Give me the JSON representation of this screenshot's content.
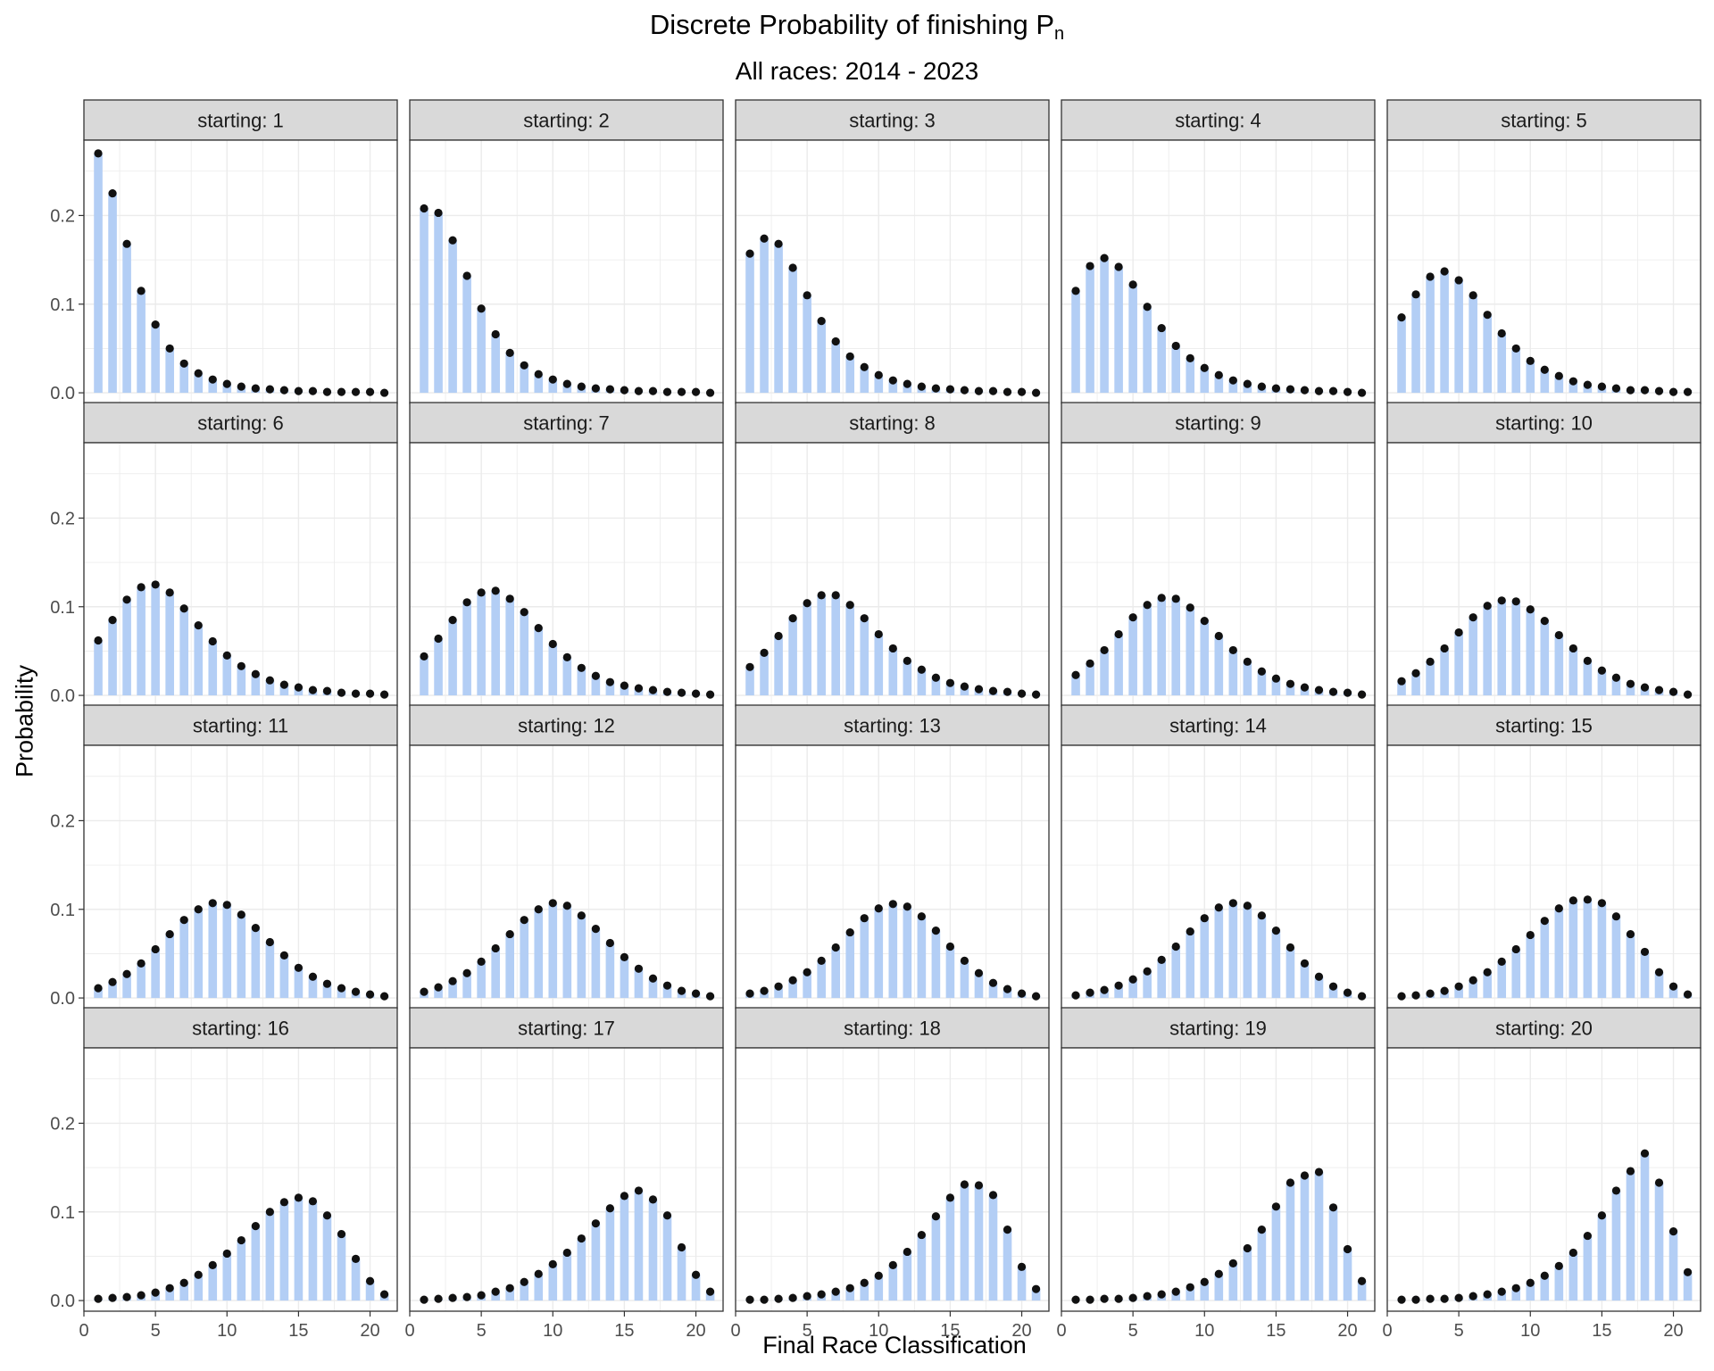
{
  "title": {
    "main": "Discrete Probability of finishing P",
    "sub": "n"
  },
  "subtitle": "All races: 2014 - 2023",
  "colors": {
    "bar": "#b3cef5",
    "point": "#111111",
    "strip": "#d9d9d9",
    "grid": "#ebebeb",
    "border": "#333333"
  },
  "chart_data": {
    "type": "bar",
    "xlabel": "Final Race Classification",
    "ylabel": "Probability",
    "xlim": [
      0,
      21.9
    ],
    "ylim": [
      -0.012,
      0.285
    ],
    "x_ticks": [
      0,
      5,
      10,
      15,
      20
    ],
    "y_ticks": [
      0.0,
      0.1,
      0.2
    ],
    "y_tick_labels": [
      "0.0",
      "0.1",
      "0.2"
    ],
    "grid": true,
    "categories": [
      1,
      2,
      3,
      4,
      5,
      6,
      7,
      8,
      9,
      10,
      11,
      12,
      13,
      14,
      15,
      16,
      17,
      18,
      19,
      20,
      21
    ],
    "series": [
      {
        "name": "starting: 1",
        "values": [
          0.27,
          0.225,
          0.168,
          0.115,
          0.077,
          0.05,
          0.033,
          0.022,
          0.015,
          0.01,
          0.007,
          0.005,
          0.004,
          0.003,
          0.002,
          0.002,
          0.001,
          0.001,
          0.001,
          0.001,
          0.0
        ]
      },
      {
        "name": "starting: 2",
        "values": [
          0.208,
          0.203,
          0.172,
          0.132,
          0.095,
          0.066,
          0.045,
          0.031,
          0.021,
          0.015,
          0.01,
          0.007,
          0.005,
          0.004,
          0.003,
          0.002,
          0.002,
          0.001,
          0.001,
          0.001,
          0.0
        ]
      },
      {
        "name": "starting: 3",
        "values": [
          0.157,
          0.174,
          0.168,
          0.141,
          0.11,
          0.081,
          0.058,
          0.041,
          0.029,
          0.02,
          0.014,
          0.01,
          0.007,
          0.005,
          0.004,
          0.003,
          0.002,
          0.002,
          0.001,
          0.001,
          0.0
        ]
      },
      {
        "name": "starting: 4",
        "values": [
          0.115,
          0.143,
          0.152,
          0.142,
          0.122,
          0.097,
          0.073,
          0.053,
          0.039,
          0.028,
          0.02,
          0.014,
          0.01,
          0.007,
          0.005,
          0.004,
          0.003,
          0.002,
          0.002,
          0.001,
          0.0
        ]
      },
      {
        "name": "starting: 5",
        "values": [
          0.085,
          0.111,
          0.131,
          0.137,
          0.127,
          0.11,
          0.088,
          0.067,
          0.05,
          0.036,
          0.026,
          0.019,
          0.013,
          0.009,
          0.007,
          0.005,
          0.003,
          0.003,
          0.002,
          0.001,
          0.001
        ]
      },
      {
        "name": "starting: 6",
        "values": [
          0.062,
          0.085,
          0.108,
          0.122,
          0.125,
          0.116,
          0.098,
          0.079,
          0.061,
          0.045,
          0.033,
          0.024,
          0.017,
          0.012,
          0.009,
          0.006,
          0.005,
          0.003,
          0.002,
          0.002,
          0.001
        ]
      },
      {
        "name": "starting: 7",
        "values": [
          0.044,
          0.064,
          0.085,
          0.105,
          0.116,
          0.118,
          0.109,
          0.094,
          0.076,
          0.058,
          0.043,
          0.031,
          0.022,
          0.015,
          0.011,
          0.008,
          0.006,
          0.004,
          0.003,
          0.002,
          0.001
        ]
      },
      {
        "name": "starting: 8",
        "values": [
          0.032,
          0.048,
          0.067,
          0.087,
          0.104,
          0.113,
          0.113,
          0.102,
          0.087,
          0.069,
          0.053,
          0.039,
          0.029,
          0.02,
          0.014,
          0.01,
          0.007,
          0.005,
          0.004,
          0.002,
          0.001
        ]
      },
      {
        "name": "starting: 9",
        "values": [
          0.023,
          0.036,
          0.051,
          0.069,
          0.088,
          0.102,
          0.11,
          0.109,
          0.099,
          0.084,
          0.067,
          0.051,
          0.038,
          0.027,
          0.019,
          0.013,
          0.009,
          0.006,
          0.004,
          0.003,
          0.001
        ]
      },
      {
        "name": "starting: 10",
        "values": [
          0.016,
          0.025,
          0.038,
          0.053,
          0.071,
          0.088,
          0.101,
          0.107,
          0.106,
          0.097,
          0.084,
          0.068,
          0.053,
          0.039,
          0.028,
          0.02,
          0.013,
          0.009,
          0.006,
          0.004,
          0.001
        ]
      },
      {
        "name": "starting: 11",
        "values": [
          0.011,
          0.018,
          0.027,
          0.039,
          0.055,
          0.072,
          0.088,
          0.1,
          0.107,
          0.105,
          0.094,
          0.079,
          0.063,
          0.048,
          0.034,
          0.024,
          0.016,
          0.011,
          0.007,
          0.004,
          0.002
        ]
      },
      {
        "name": "starting: 12",
        "values": [
          0.007,
          0.012,
          0.019,
          0.028,
          0.041,
          0.056,
          0.072,
          0.088,
          0.1,
          0.107,
          0.104,
          0.093,
          0.078,
          0.062,
          0.046,
          0.033,
          0.022,
          0.014,
          0.008,
          0.005,
          0.002
        ]
      },
      {
        "name": "starting: 13",
        "values": [
          0.005,
          0.008,
          0.013,
          0.02,
          0.029,
          0.042,
          0.057,
          0.074,
          0.09,
          0.101,
          0.106,
          0.103,
          0.092,
          0.076,
          0.058,
          0.042,
          0.028,
          0.017,
          0.01,
          0.005,
          0.002
        ]
      },
      {
        "name": "starting: 14",
        "values": [
          0.003,
          0.006,
          0.009,
          0.014,
          0.021,
          0.03,
          0.043,
          0.058,
          0.075,
          0.09,
          0.102,
          0.107,
          0.104,
          0.093,
          0.076,
          0.057,
          0.039,
          0.024,
          0.013,
          0.006,
          0.002
        ]
      },
      {
        "name": "starting: 15",
        "values": [
          0.002,
          0.003,
          0.005,
          0.008,
          0.013,
          0.02,
          0.029,
          0.041,
          0.055,
          0.071,
          0.087,
          0.101,
          0.11,
          0.111,
          0.107,
          0.092,
          0.072,
          0.052,
          0.029,
          0.013,
          0.004
        ]
      },
      {
        "name": "starting: 16",
        "values": [
          0.002,
          0.003,
          0.004,
          0.006,
          0.009,
          0.014,
          0.02,
          0.029,
          0.04,
          0.053,
          0.068,
          0.084,
          0.1,
          0.111,
          0.116,
          0.112,
          0.096,
          0.075,
          0.047,
          0.022,
          0.007
        ]
      },
      {
        "name": "starting: 17",
        "values": [
          0.001,
          0.002,
          0.003,
          0.004,
          0.006,
          0.01,
          0.014,
          0.021,
          0.03,
          0.041,
          0.054,
          0.07,
          0.087,
          0.104,
          0.118,
          0.124,
          0.114,
          0.096,
          0.06,
          0.029,
          0.01
        ]
      },
      {
        "name": "starting: 18",
        "values": [
          0.001,
          0.001,
          0.002,
          0.003,
          0.005,
          0.007,
          0.01,
          0.014,
          0.02,
          0.028,
          0.04,
          0.055,
          0.074,
          0.095,
          0.116,
          0.131,
          0.13,
          0.119,
          0.08,
          0.038,
          0.013
        ]
      },
      {
        "name": "starting: 19",
        "values": [
          0.001,
          0.001,
          0.002,
          0.002,
          0.003,
          0.005,
          0.007,
          0.01,
          0.015,
          0.021,
          0.03,
          0.042,
          0.059,
          0.08,
          0.106,
          0.133,
          0.141,
          0.145,
          0.105,
          0.058,
          0.022
        ]
      },
      {
        "name": "starting: 20",
        "values": [
          0.001,
          0.001,
          0.002,
          0.002,
          0.003,
          0.005,
          0.007,
          0.01,
          0.014,
          0.02,
          0.028,
          0.039,
          0.054,
          0.073,
          0.096,
          0.124,
          0.146,
          0.166,
          0.133,
          0.078,
          0.032
        ]
      }
    ]
  }
}
